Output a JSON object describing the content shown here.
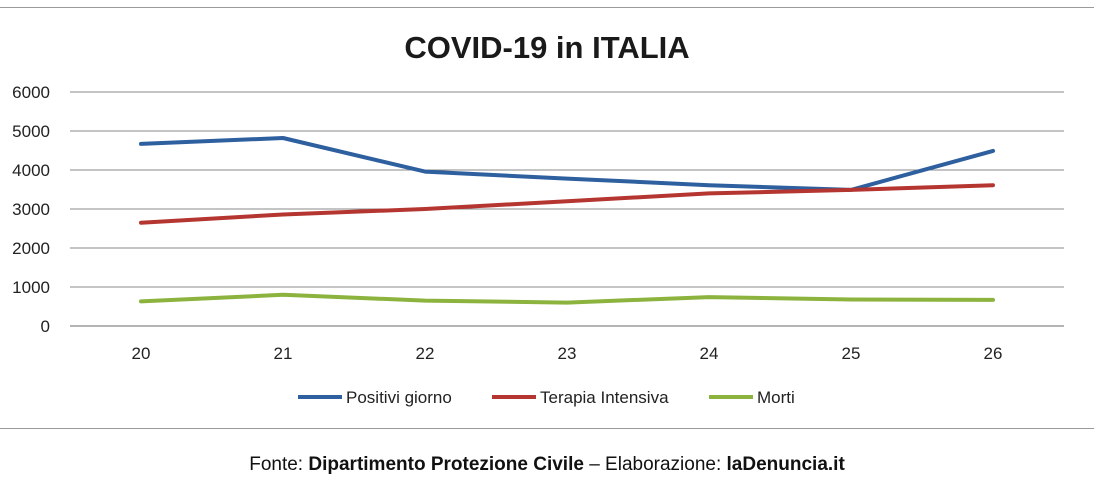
{
  "chart_data": {
    "type": "line",
    "title": "COVID-19 in ITALIA",
    "x": [
      "20",
      "21",
      "22",
      "23",
      "24",
      "25",
      "26"
    ],
    "ylim": [
      0,
      6000
    ],
    "yticks": [
      "0",
      "1000",
      "2000",
      "3000",
      "4000",
      "5000",
      "6000"
    ],
    "grid": true,
    "legend_position": "bottom",
    "series": [
      {
        "name": "Positivi giorno",
        "color": "#2e5f9e",
        "values": [
          4670,
          4820,
          3960,
          3780,
          3610,
          3490,
          4490
        ]
      },
      {
        "name": "Terapia Intensiva",
        "color": "#b53530",
        "values": [
          2650,
          2860,
          3000,
          3200,
          3400,
          3490,
          3610
        ]
      },
      {
        "name": "Morti",
        "color": "#8bb33e",
        "values": [
          630,
          800,
          650,
          600,
          740,
          680,
          670
        ]
      }
    ]
  },
  "footer": {
    "prefix": "Fonte: ",
    "source": "Dipartimento Protezione Civile",
    "dash": " – ",
    "middle": "Elaborazione: ",
    "author": "laDenuncia.it"
  }
}
